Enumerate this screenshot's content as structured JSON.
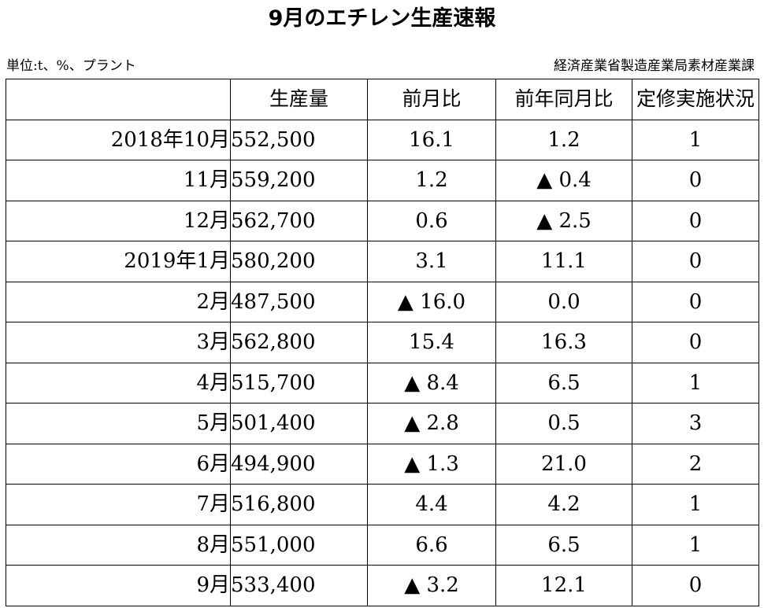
{
  "title": "9月のエチレン生産速報",
  "unit_note": "単位:t、%、プラント",
  "source": "経済産業省製造産業局素材産業課",
  "table": {
    "headers": [
      "",
      "生産量",
      "前月比",
      "前年同月比",
      "定修実施状況"
    ],
    "rows": [
      {
        "period": "2018年10月",
        "production": "552,500",
        "mom": "16.1",
        "yoy": "1.2",
        "maintenance": "1"
      },
      {
        "period": "11月",
        "production": "559,200",
        "mom": "1.2",
        "yoy": "▲ 0.4",
        "maintenance": "0"
      },
      {
        "period": "12月",
        "production": "562,700",
        "mom": "0.6",
        "yoy": "▲ 2.5",
        "maintenance": "0"
      },
      {
        "period": "2019年1月",
        "production": "580,200",
        "mom": "3.1",
        "yoy": "11.1",
        "maintenance": "0"
      },
      {
        "period": "2月",
        "production": "487,500",
        "mom": "▲ 16.0",
        "yoy": "0.0",
        "maintenance": "0"
      },
      {
        "period": "3月",
        "production": "562,800",
        "mom": "15.4",
        "yoy": "16.3",
        "maintenance": "0"
      },
      {
        "period": "4月",
        "production": "515,700",
        "mom": "▲ 8.4",
        "yoy": "6.5",
        "maintenance": "1"
      },
      {
        "period": "5月",
        "production": "501,400",
        "mom": "▲ 2.8",
        "yoy": "0.5",
        "maintenance": "3"
      },
      {
        "period": "6月",
        "production": "494,900",
        "mom": "▲ 1.3",
        "yoy": "21.0",
        "maintenance": "2"
      },
      {
        "period": "7月",
        "production": "516,800",
        "mom": "4.4",
        "yoy": "4.2",
        "maintenance": "1"
      },
      {
        "period": "8月",
        "production": "551,000",
        "mom": "6.6",
        "yoy": "6.5",
        "maintenance": "1"
      },
      {
        "period": "9月",
        "production": "533,400",
        "mom": "▲ 3.2",
        "yoy": "12.1",
        "maintenance": "0"
      }
    ]
  }
}
